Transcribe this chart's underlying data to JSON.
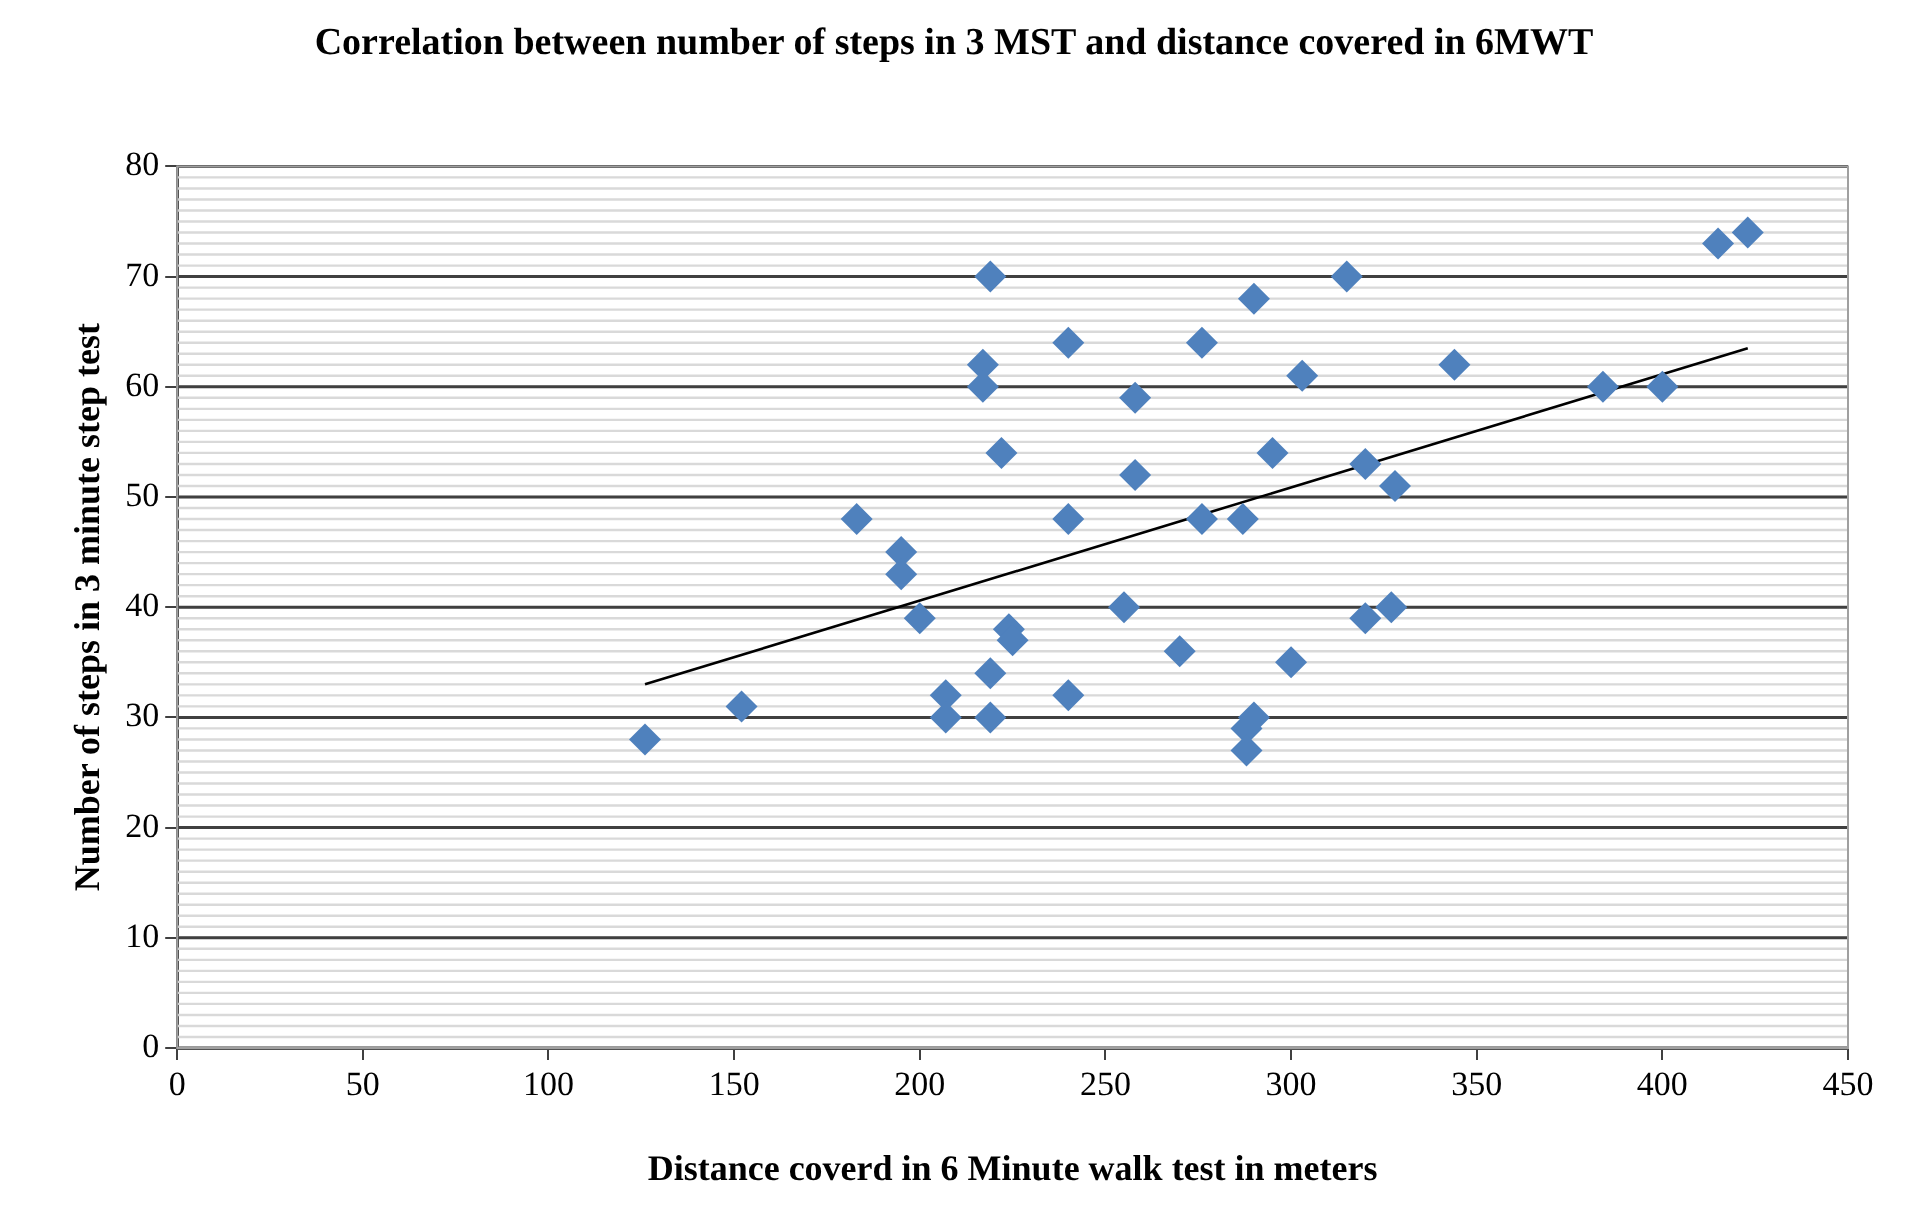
{
  "chart_data": {
    "type": "scatter",
    "title": "Correlation between number of steps in 3 MST and distance covered in 6MWT",
    "xlabel": "Distance coverd in 6 Minute walk test in meters",
    "ylabel": "Number of steps in 3 minute step test",
    "xlim": [
      0,
      450
    ],
    "xticks": [
      0,
      50,
      100,
      150,
      200,
      250,
      300,
      350,
      400,
      450
    ],
    "ylim": [
      0,
      80
    ],
    "yticks": [
      0,
      10,
      20,
      30,
      40,
      50,
      60,
      70,
      80
    ],
    "grid": "y",
    "legend": false,
    "marker": "diamond",
    "series": [
      {
        "color": "#4f81bd",
        "x": [
          126,
          152,
          183,
          195,
          195,
          200,
          207,
          207,
          217,
          217,
          219,
          219,
          219,
          222,
          224,
          225,
          240,
          240,
          240,
          255,
          258,
          258,
          270,
          276,
          276,
          287,
          288,
          288,
          290,
          290,
          295,
          300,
          303,
          315,
          320,
          320,
          327,
          328,
          344,
          384,
          400,
          415,
          423
        ],
        "values": [
          28,
          31,
          48,
          45,
          43,
          39,
          32,
          30,
          62,
          60,
          70,
          34,
          30,
          54,
          38,
          37,
          64,
          48,
          32,
          40,
          59,
          52,
          36,
          64,
          48,
          48,
          29,
          27,
          68,
          30,
          54,
          35,
          61,
          70,
          53,
          39,
          40,
          51,
          62,
          60,
          60,
          73,
          74
        ]
      },
      {
        "type": "line",
        "color": "#000000",
        "marker": "none",
        "x": [
          126,
          423
        ],
        "values": [
          33,
          63.5
        ]
      }
    ]
  }
}
